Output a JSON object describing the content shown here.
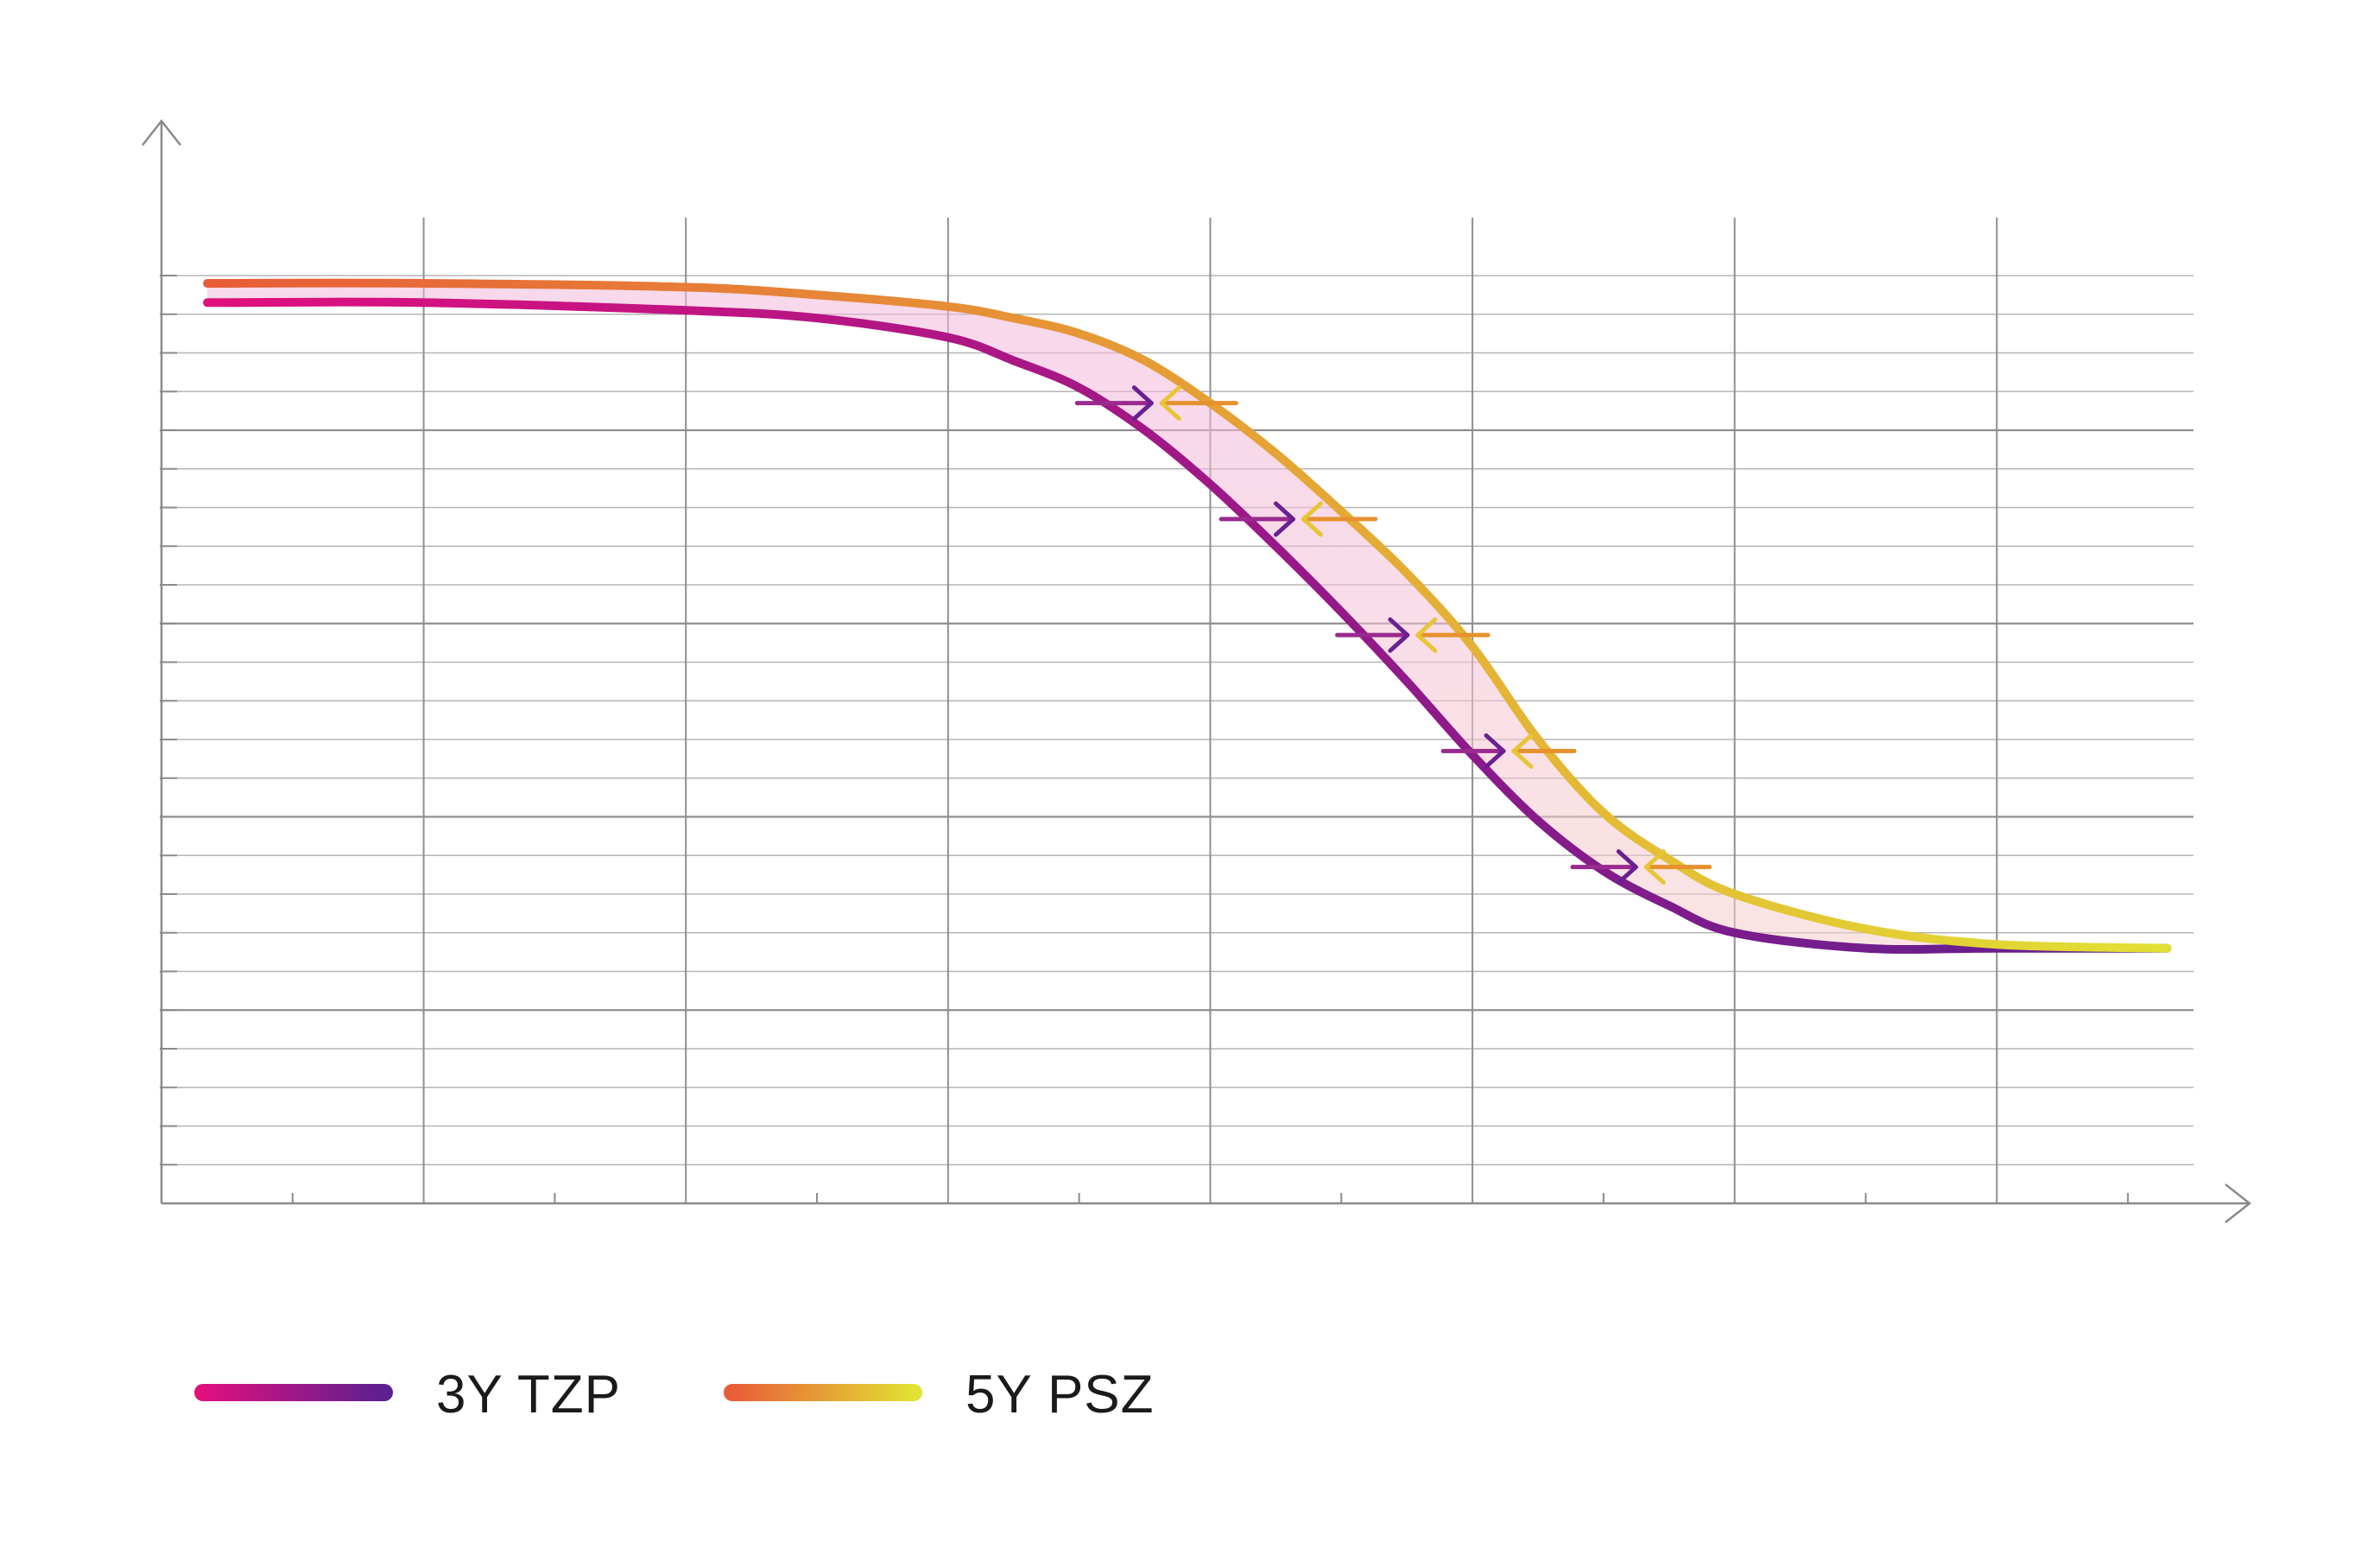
{
  "chart_data": {
    "type": "line",
    "title": "",
    "xlabel": "",
    "ylabel": "",
    "xlim": [
      0,
      15.5
    ],
    "ylim": [
      0,
      28
    ],
    "grid": true,
    "legend_placement": "bottom-left",
    "series": [
      {
        "name": "3Y TZP",
        "gradient": [
          "#e0107e",
          "#5c2090"
        ],
        "x": [
          0.35,
          2,
          4,
          5,
          6,
          6.5,
          7,
          7.5,
          8,
          8.5,
          9,
          9.5,
          10,
          10.5,
          11,
          11.5,
          12,
          13,
          14,
          15.3
        ],
        "y": [
          23.3,
          23.3,
          23.1,
          22.9,
          22.4,
          21.8,
          21.1,
          20.0,
          18.6,
          17.0,
          15.3,
          13.5,
          11.6,
          9.9,
          8.6,
          7.7,
          7.0,
          6.6,
          6.6,
          6.6
        ]
      },
      {
        "name": "5Y PSZ",
        "gradient": [
          "#e85c38",
          "#e2e234"
        ],
        "x": [
          0.35,
          2,
          4,
          5,
          6,
          6.5,
          7,
          7.5,
          8,
          8.5,
          9,
          9.5,
          10,
          10.5,
          11,
          11.5,
          12,
          13,
          14,
          15.3
        ],
        "y": [
          23.8,
          23.8,
          23.7,
          23.5,
          23.2,
          22.9,
          22.5,
          21.8,
          20.7,
          19.4,
          17.9,
          16.3,
          14.4,
          12.0,
          10.1,
          8.9,
          8.0,
          7.1,
          6.7,
          6.6
        ]
      }
    ],
    "arrows_y": [
      20.7,
      17.7,
      14.7,
      11.7,
      8.7
    ]
  }
}
